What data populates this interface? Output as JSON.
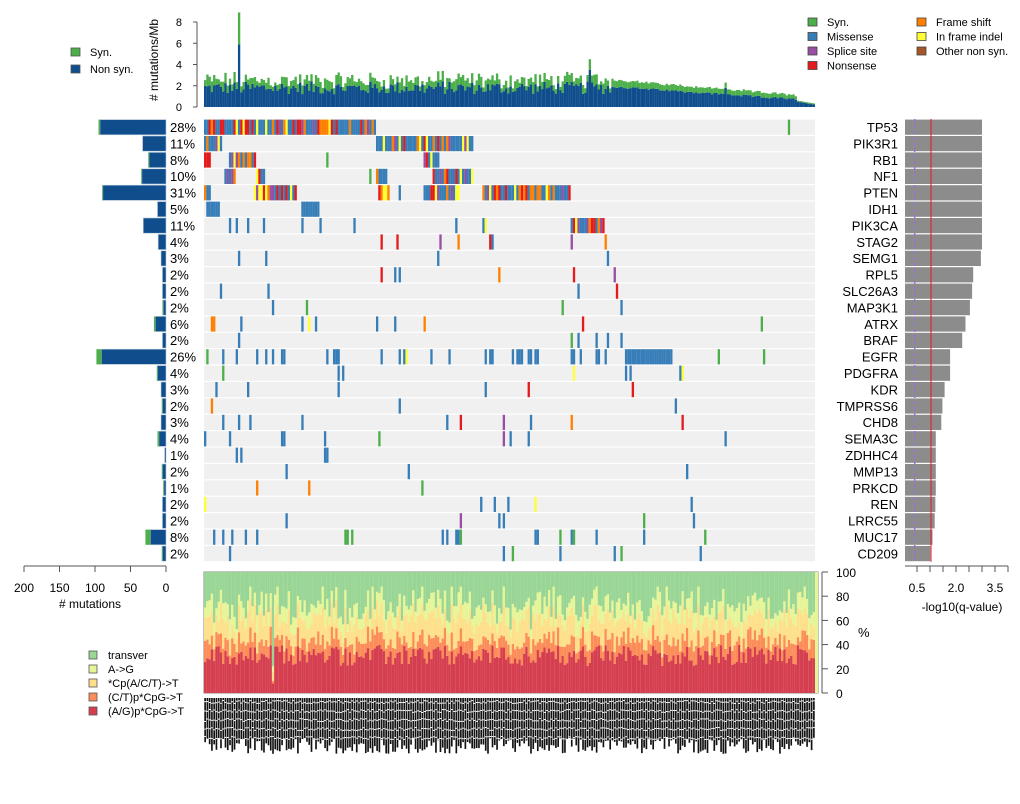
{
  "colors": {
    "syn": "#4daf4a",
    "nonsyn": "#0f4d8c",
    "missense": "#377eb8",
    "splice_site": "#984ea3",
    "nonsense": "#e41a1c",
    "frame_shift": "#ff7f00",
    "in_frame_indel": "#ffff33",
    "other_non_syn": "#a65628",
    "background_cell": "#f0f0f0",
    "qbar": "#8c8c8c",
    "threshold_solid": "#e41a1c",
    "threshold_dashed": "#9b6fd6",
    "transver": "#99d594",
    "a_to_g": "#e6f598",
    "cpacgt_to_t": "#fee08b",
    "ct_cpg_to_t": "#fc8d59",
    "ag_cpg_to_t": "#d53e4f"
  },
  "chart_data": [
    {
      "name": "mutation-rate",
      "type": "bar",
      "ylabel": "# mutations/Mb",
      "ylim": [
        0,
        8.5
      ],
      "yticks": [
        0,
        2,
        4,
        6,
        8
      ],
      "num_samples": 270,
      "legend": [
        {
          "label": "Syn.",
          "color_key": "syn"
        },
        {
          "label": "Non syn.",
          "color_key": "nonsyn"
        }
      ],
      "legend_placement": "top-left",
      "note": "per-sample stacked bars; non-syn approx 1-2 /Mb with syn approx 0.3-1 /Mb; peak sample approx 8.9 total (5.9 non-syn); descending tail at right"
    },
    {
      "name": "oncoprint",
      "type": "heatmap",
      "legend": [
        {
          "label": "Syn.",
          "color_key": "syn"
        },
        {
          "label": "Missense",
          "color_key": "missense"
        },
        {
          "label": "Splice site",
          "color_key": "splice_site"
        },
        {
          "label": "Nonsense",
          "color_key": "nonsense"
        },
        {
          "label": "Frame shift",
          "color_key": "frame_shift"
        },
        {
          "label": "In frame indel",
          "color_key": "in_frame_indel"
        },
        {
          "label": "Other non syn.",
          "color_key": "other_non_syn"
        }
      ],
      "legend_placement": "top-right",
      "genes": [
        {
          "gene": "TP53",
          "pct": "28%",
          "nonsyn": 93,
          "syn": 2,
          "neglog10q": 3.5
        },
        {
          "gene": "PIK3R1",
          "pct": "11%",
          "nonsyn": 33,
          "syn": 0,
          "neglog10q": 3.5
        },
        {
          "gene": "RB1",
          "pct": "8%",
          "nonsyn": 24,
          "syn": 1,
          "neglog10q": 3.5
        },
        {
          "gene": "NF1",
          "pct": "10%",
          "nonsyn": 34,
          "syn": 1,
          "neglog10q": 3.5
        },
        {
          "gene": "PTEN",
          "pct": "31%",
          "nonsyn": 89,
          "syn": 1,
          "neglog10q": 3.5
        },
        {
          "gene": "IDH1",
          "pct": "5%",
          "nonsyn": 12,
          "syn": 0,
          "neglog10q": 3.5
        },
        {
          "gene": "PIK3CA",
          "pct": "11%",
          "nonsyn": 32,
          "syn": 0,
          "neglog10q": 3.5
        },
        {
          "gene": "STAG2",
          "pct": "4%",
          "nonsyn": 11,
          "syn": 0,
          "neglog10q": 3.5
        },
        {
          "gene": "SEMG1",
          "pct": "3%",
          "nonsyn": 7,
          "syn": 0,
          "neglog10q": 3.45
        },
        {
          "gene": "RPL5",
          "pct": "2%",
          "nonsyn": 5,
          "syn": 0,
          "neglog10q": 3.1
        },
        {
          "gene": "SLC26A3",
          "pct": "2%",
          "nonsyn": 5,
          "syn": 0,
          "neglog10q": 3.05
        },
        {
          "gene": "MAP3K1",
          "pct": "2%",
          "nonsyn": 4,
          "syn": 1,
          "neglog10q": 2.95
        },
        {
          "gene": "ATRX",
          "pct": "6%",
          "nonsyn": 15,
          "syn": 2,
          "neglog10q": 2.75
        },
        {
          "gene": "BRAF",
          "pct": "2%",
          "nonsyn": 5,
          "syn": 0,
          "neglog10q": 2.6
        },
        {
          "gene": "EGFR",
          "pct": "26%",
          "nonsyn": 91,
          "syn": 7,
          "neglog10q": 2.05
        },
        {
          "gene": "PDGFRA",
          "pct": "4%",
          "nonsyn": 12,
          "syn": 1,
          "neglog10q": 2.05
        },
        {
          "gene": "KDR",
          "pct": "3%",
          "nonsyn": 7,
          "syn": 0,
          "neglog10q": 1.8
        },
        {
          "gene": "TMPRSS6",
          "pct": "2%",
          "nonsyn": 5,
          "syn": 1,
          "neglog10q": 1.7
        },
        {
          "gene": "CHD8",
          "pct": "3%",
          "nonsyn": 7,
          "syn": 0,
          "neglog10q": 1.65
        },
        {
          "gene": "SEMA3C",
          "pct": "4%",
          "nonsyn": 10,
          "syn": 2,
          "neglog10q": 1.4
        },
        {
          "gene": "ZDHHC4",
          "pct": "1%",
          "nonsyn": 2,
          "syn": 0,
          "neglog10q": 1.4
        },
        {
          "gene": "MMP13",
          "pct": "2%",
          "nonsyn": 5,
          "syn": 1,
          "neglog10q": 1.4
        },
        {
          "gene": "PRKCD",
          "pct": "1%",
          "nonsyn": 3,
          "syn": 1,
          "neglog10q": 1.4
        },
        {
          "gene": "REN",
          "pct": "2%",
          "nonsyn": 5,
          "syn": 0,
          "neglog10q": 1.38
        },
        {
          "gene": "LRRC55",
          "pct": "2%",
          "nonsyn": 5,
          "syn": 0,
          "neglog10q": 1.35
        },
        {
          "gene": "MUC17",
          "pct": "8%",
          "nonsyn": 22,
          "syn": 7,
          "neglog10q": 1.25
        },
        {
          "gene": "CD209",
          "pct": "2%",
          "nonsyn": 5,
          "syn": 1,
          "neglog10q": 1.15
        }
      ]
    },
    {
      "name": "gene-mutation-counts",
      "type": "bar",
      "xlabel": "# mutations",
      "xlim": [
        200,
        0
      ],
      "xticks": [
        200,
        150,
        100,
        50,
        0
      ]
    },
    {
      "name": "q-values",
      "type": "bar",
      "xlabel": "-log10(q-value)",
      "xlim": [
        0,
        4
      ],
      "xticks": [
        "0.5",
        "2.0",
        "3.5"
      ],
      "thresholds": [
        {
          "value": 0.5,
          "style": "dashed",
          "color_key": "threshold_dashed"
        },
        {
          "value": 1.0,
          "style": "solid",
          "color_key": "threshold_solid"
        }
      ]
    },
    {
      "name": "mutation-spectrum",
      "type": "bar",
      "ylabel": "%",
      "ylim": [
        0,
        100
      ],
      "yticks": [
        0,
        20,
        40,
        60,
        80,
        100
      ],
      "stacked": true,
      "legend": [
        {
          "label": "transver",
          "color_key": "transver"
        },
        {
          "label": "A->G",
          "color_key": "a_to_g"
        },
        {
          "label": "*Cp(A/C/T)->T",
          "color_key": "cpacgt_to_t"
        },
        {
          "label": "(C/T)p*CpG->T",
          "color_key": "ct_cpg_to_t"
        },
        {
          "label": "(A/G)p*CpG->T",
          "color_key": "ag_cpg_to_t"
        }
      ],
      "legend_placement": "bottom-left",
      "mean_percent": {
        "ag_cpg_to_t": 30,
        "ct_cpg_to_t": 12,
        "cpacgt_to_t": 18,
        "a_to_g": 12,
        "transver": 28
      }
    }
  ],
  "labels": {
    "top_legend_syn": "Syn.",
    "top_legend_nonsyn": "Non syn.",
    "top_ylabel": "# mutations/Mb",
    "left_xlabel": "# mutations",
    "right_xlabel": "-log10(q-value)",
    "spectrum_ylabel": "%"
  }
}
